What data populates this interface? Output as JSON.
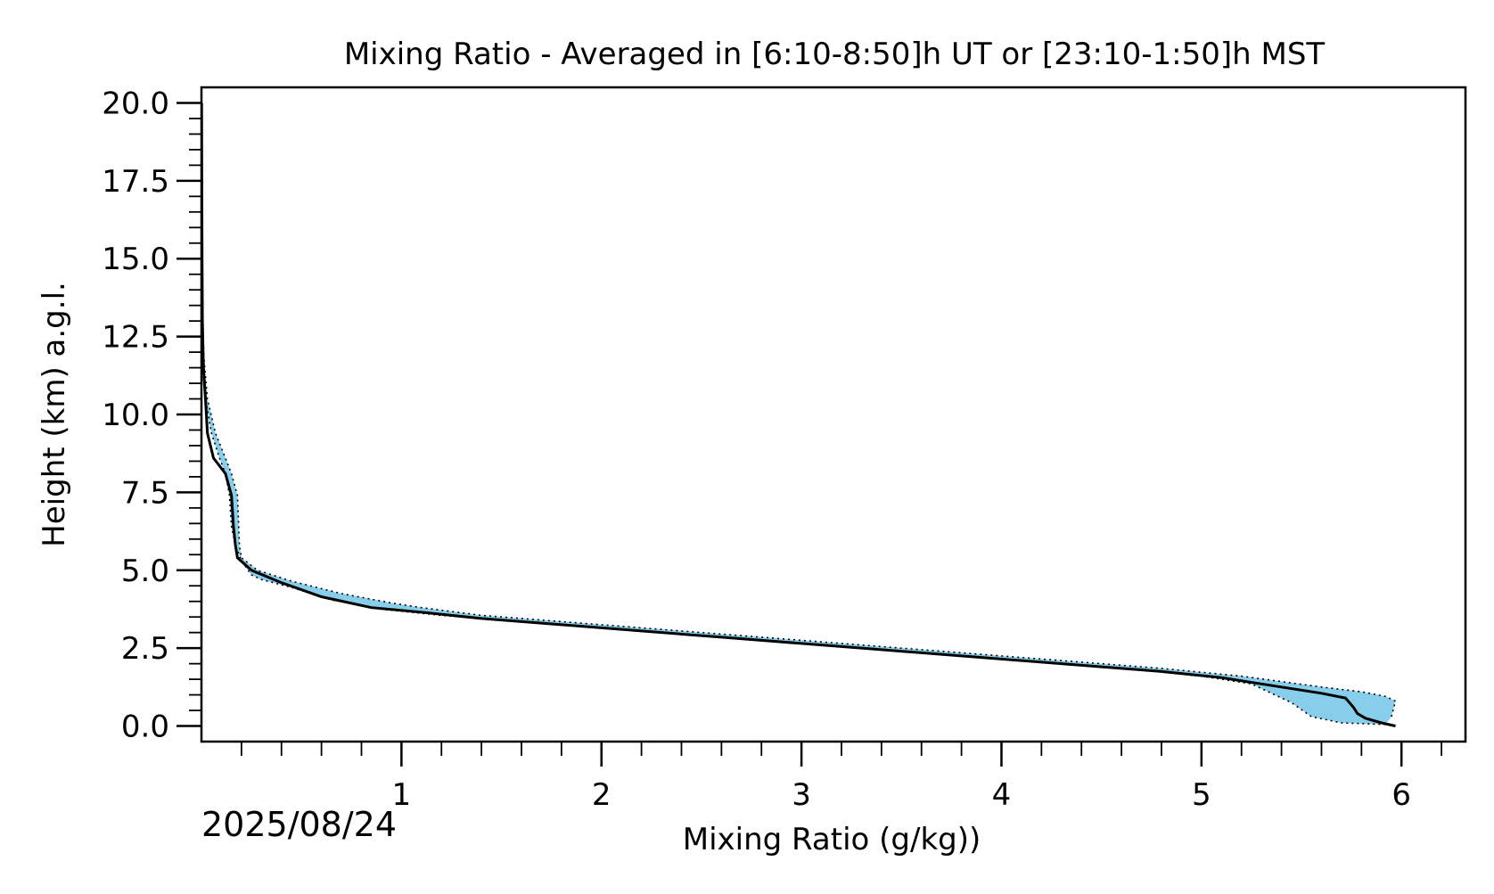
{
  "chart_data": {
    "type": "line",
    "title": "Mixing Ratio - Averaged in [6:10-8:50]h UT or [23:10-1:50]h MST",
    "xlabel": "Mixing Ratio (g/kg))",
    "ylabel": "Height (km) a.g.l.",
    "date": "2025/08/24",
    "xlim": [
      0,
      6.32
    ],
    "ylim": [
      -0.5,
      20.5
    ],
    "x_ticks": [
      1,
      2,
      3,
      4,
      5,
      6
    ],
    "x_tick_labels": [
      "1",
      "2",
      "3",
      "4",
      "5",
      "6"
    ],
    "y_ticks": [
      0,
      2.5,
      5,
      7.5,
      10,
      12.5,
      15,
      17.5,
      20
    ],
    "y_tick_labels": [
      "0.0",
      "2.5",
      "5.0",
      "7.5",
      "10.0",
      "12.5",
      "15.0",
      "17.5",
      "20.0"
    ],
    "grid": false,
    "colors": {
      "mean": "#000000",
      "band": "#87ceeb"
    },
    "series": [
      {
        "kind": "mean",
        "x": [
          5.97,
          5.9,
          5.82,
          5.78,
          5.76,
          5.72,
          5.6,
          5.4,
          5.1,
          4.8,
          4.5,
          4.2,
          3.8,
          3.4,
          3.0,
          2.6,
          2.2,
          1.8,
          1.4,
          1.1,
          0.85,
          0.6,
          0.4,
          0.25,
          0.18,
          0.17,
          0.16,
          0.15,
          0.12,
          0.06,
          0.03,
          0.02,
          0.01,
          0.005,
          0.003,
          0.002,
          0.001
        ],
        "y": [
          0.0,
          0.1,
          0.25,
          0.4,
          0.6,
          0.9,
          1.05,
          1.25,
          1.55,
          1.75,
          1.9,
          2.05,
          2.25,
          2.45,
          2.65,
          2.85,
          3.05,
          3.25,
          3.45,
          3.65,
          3.8,
          4.15,
          4.6,
          5.0,
          5.4,
          5.8,
          6.4,
          7.4,
          8.1,
          8.6,
          9.4,
          10.5,
          11.5,
          13.0,
          15.0,
          17.5,
          20.0
        ]
      },
      {
        "kind": "upper",
        "x": [
          5.95,
          5.97,
          5.92,
          5.8,
          5.6,
          5.2,
          4.8,
          4.5,
          4.2,
          3.8,
          3.4,
          3.0,
          2.6,
          2.2,
          1.8,
          1.4,
          1.1,
          0.95,
          0.7,
          0.45,
          0.28,
          0.2,
          0.19,
          0.18,
          0.15,
          0.12,
          0.07,
          0.03,
          0.01,
          0.003
        ],
        "y": [
          0.3,
          0.8,
          0.95,
          1.1,
          1.25,
          1.6,
          1.85,
          2.0,
          2.15,
          2.35,
          2.55,
          2.75,
          2.95,
          3.15,
          3.35,
          3.55,
          3.8,
          3.95,
          4.25,
          4.65,
          5.0,
          5.4,
          5.8,
          7.4,
          8.1,
          8.6,
          9.4,
          10.5,
          12.0,
          15.0
        ]
      },
      {
        "kind": "lower",
        "x": [
          5.92,
          5.7,
          5.55,
          5.45,
          5.25,
          5.0,
          4.7,
          4.4,
          4.0,
          3.6,
          3.2,
          2.8,
          2.4,
          2.0,
          1.6,
          1.2,
          0.9,
          0.65,
          0.45,
          0.3,
          0.25,
          0.2,
          0.17,
          0.15,
          0.14,
          0.12,
          0.09,
          0.05,
          0.02,
          0.005
        ],
        "y": [
          0.05,
          0.1,
          0.3,
          0.75,
          1.35,
          1.6,
          1.8,
          1.95,
          2.15,
          2.35,
          2.55,
          2.75,
          2.95,
          3.15,
          3.35,
          3.55,
          3.75,
          4.05,
          4.45,
          4.7,
          4.85,
          5.3,
          5.8,
          6.4,
          7.4,
          8.1,
          8.6,
          9.4,
          10.5,
          13.0
        ]
      }
    ]
  }
}
